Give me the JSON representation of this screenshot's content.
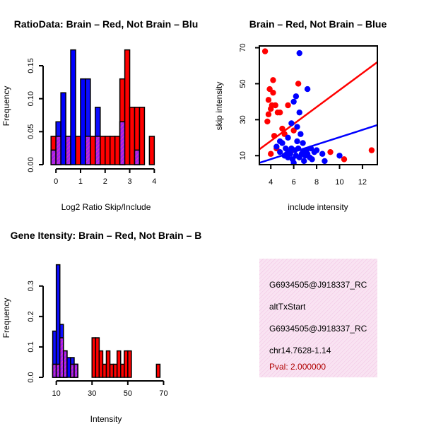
{
  "colors": {
    "red": "#ff0000",
    "blue": "#0000ff",
    "overlap": "#a020f0",
    "info_bg": "#f7dcef",
    "pval": "#b00000"
  },
  "chart_data": [
    {
      "type": "histogram",
      "title": "RatioData: Brain – Red, Not Brain – Blu",
      "xlabel": "Log2 Ratio Skip/Include",
      "ylabel": "Frequency",
      "xlim": [
        -0.35,
        4.45
      ],
      "ylim": [
        0,
        0.18
      ],
      "xticks": [
        0,
        1,
        2,
        3,
        4
      ],
      "yticks": [
        0.0,
        0.05,
        0.1,
        0.15
      ],
      "ytick_labels": [
        "0.00",
        "0.05",
        "0.10",
        "0.15"
      ],
      "bin_width": 0.2,
      "bin_start": -0.2,
      "series": [
        {
          "name": "Brain",
          "color_key": "red",
          "values": [
            0.043,
            0.043,
            0,
            0.043,
            0,
            0.043,
            0,
            0.043,
            0.043,
            0.043,
            0.043,
            0.043,
            0.043,
            0.043,
            0.13,
            0.174,
            0.087,
            0.087,
            0.087,
            0,
            0.043
          ]
        },
        {
          "name": "Not Brain",
          "color_key": "blue",
          "values": [
            0.022,
            0.065,
            0.109,
            0.043,
            0.174,
            0,
            0.13,
            0.13,
            0,
            0.087,
            0,
            0,
            0,
            0,
            0.065,
            0,
            0,
            0.022,
            0,
            0,
            0
          ]
        }
      ]
    },
    {
      "type": "scatter",
      "title": "Brain – Red, Not Brain – Blue",
      "xlabel": "include intensity",
      "ylabel": "skip intensity",
      "xlim": [
        3,
        13.3
      ],
      "ylim": [
        5,
        71
      ],
      "xticks": [
        4,
        6,
        8,
        10,
        12
      ],
      "yticks": [
        10,
        30,
        50,
        70
      ],
      "series": [
        {
          "name": "Brain",
          "color_key": "red",
          "points": [
            [
              3.5,
              68
            ],
            [
              3.7,
              29
            ],
            [
              3.8,
              33
            ],
            [
              3.8,
              41
            ],
            [
              3.9,
              47
            ],
            [
              4.0,
              36
            ],
            [
              4.1,
              38
            ],
            [
              4.2,
              45
            ],
            [
              4.2,
              52
            ],
            [
              4.4,
              38
            ],
            [
              4.6,
              34
            ],
            [
              4.8,
              34
            ],
            [
              4.3,
              21
            ],
            [
              4.0,
              11
            ],
            [
              4.5,
              14
            ],
            [
              5.2,
              22
            ],
            [
              5.5,
              38
            ],
            [
              6.0,
              24
            ],
            [
              6.4,
              50
            ],
            [
              9.2,
              12
            ],
            [
              10.4,
              8
            ],
            [
              12.8,
              13
            ],
            [
              5.0,
              25
            ],
            [
              5.9,
              13
            ]
          ],
          "fit": [
            [
              3,
              13.5
            ],
            [
              13.3,
              62
            ]
          ]
        },
        {
          "name": "Not Brain",
          "color_key": "blue",
          "points": [
            [
              6.5,
              67
            ],
            [
              7.2,
              47
            ],
            [
              6.2,
              43
            ],
            [
              6.0,
              40
            ],
            [
              6.5,
              34
            ],
            [
              5.8,
              28
            ],
            [
              6.3,
              26
            ],
            [
              4.5,
              15
            ],
            [
              4.8,
              12
            ],
            [
              5.0,
              17
            ],
            [
              5.2,
              10
            ],
            [
              5.3,
              14
            ],
            [
              5.4,
              11
            ],
            [
              5.5,
              9
            ],
            [
              5.6,
              12
            ],
            [
              5.7,
              11
            ],
            [
              5.8,
              14
            ],
            [
              5.9,
              8
            ],
            [
              6.0,
              6
            ],
            [
              6.1,
              13
            ],
            [
              6.2,
              10
            ],
            [
              6.3,
              18
            ],
            [
              6.4,
              14
            ],
            [
              6.5,
              9
            ],
            [
              6.6,
              22
            ],
            [
              6.7,
              11
            ],
            [
              6.8,
              12
            ],
            [
              6.9,
              7
            ],
            [
              7.0,
              10
            ],
            [
              7.1,
              13
            ],
            [
              7.2,
              11
            ],
            [
              7.4,
              9
            ],
            [
              7.6,
              8
            ],
            [
              7.8,
              12
            ],
            [
              8.0,
              13
            ],
            [
              8.5,
              11
            ],
            [
              8.7,
              7
            ],
            [
              10.0,
              10
            ],
            [
              5.5,
              20
            ],
            [
              6.8,
              17
            ],
            [
              4.8,
              18
            ],
            [
              7.5,
              14
            ]
          ],
          "fit": [
            [
              3,
              6
            ]
          ],
          "fit_end": [
            13.3,
            27
          ]
        }
      ]
    },
    {
      "type": "histogram",
      "title": "Gene Itensity: Brain – Red, Not Brain – B",
      "xlabel": "Intensity",
      "ylabel": "Frequency",
      "xlim": [
        5,
        71
      ],
      "ylim": [
        0,
        0.39
      ],
      "xticks": [
        10,
        30,
        50,
        70
      ],
      "yticks": [
        0.0,
        0.1,
        0.2,
        0.3
      ],
      "ytick_labels": [
        "0.0",
        "0.1",
        "0.2",
        "0.3"
      ],
      "bin_width": 2,
      "bin_start": 8,
      "series": [
        {
          "name": "Brain",
          "color_key": "red",
          "values": [
            0.043,
            0.043,
            0.13,
            0.087,
            0,
            0.043,
            0.043,
            0,
            0,
            0,
            0,
            0.13,
            0.13,
            0.087,
            0.043,
            0.087,
            0.043,
            0.043,
            0.087,
            0.043,
            0.087,
            0.087,
            0,
            0,
            0,
            0,
            0,
            0,
            0,
            0.043
          ]
        },
        {
          "name": "Not Brain",
          "color_key": "blue",
          "values": [
            0.152,
            0.37,
            0.174,
            0.087,
            0.065,
            0.065,
            0.043,
            0,
            0,
            0,
            0,
            0,
            0,
            0,
            0,
            0,
            0,
            0,
            0,
            0,
            0,
            0,
            0,
            0,
            0,
            0,
            0,
            0,
            0,
            0
          ]
        }
      ]
    }
  ],
  "info_panel": {
    "line1": "G6934505@J918337_RC",
    "line2": "altTxStart",
    "line3": "G6934505@J918337_RC",
    "line4": "chr14.7628-1.14",
    "pval": "Pval: 2.000000"
  }
}
